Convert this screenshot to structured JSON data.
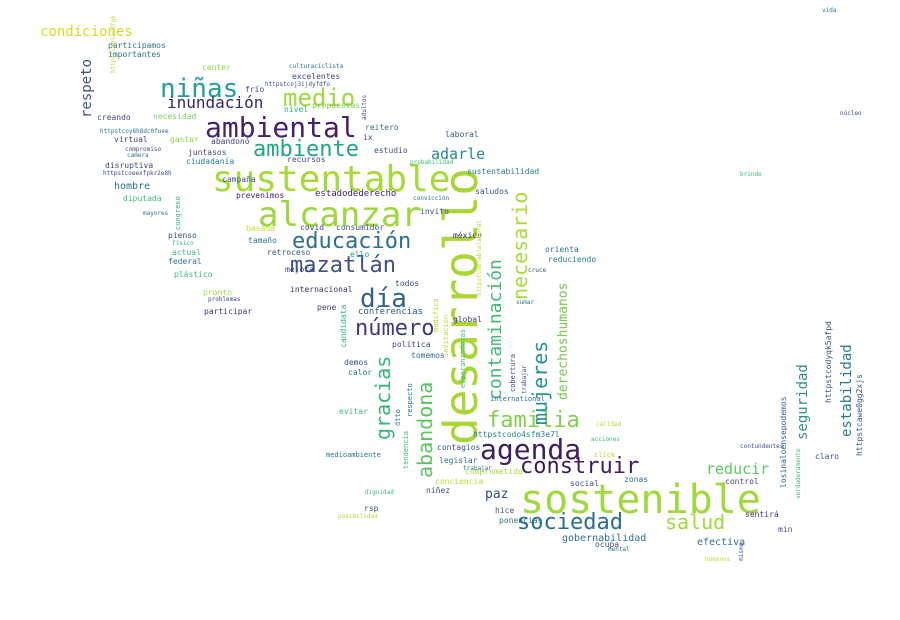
{
  "words": [
    {
      "text": "desarrollo",
      "color": "#a8d632"
    },
    {
      "text": "sostenible",
      "color": "#9fd93a"
    },
    {
      "text": "sustentable",
      "color": "#a4db36"
    },
    {
      "text": "alcanzar",
      "color": "#9cd73b"
    },
    {
      "text": "ambiental",
      "color": "#45206b"
    },
    {
      "text": "agenda",
      "color": "#3b1e63"
    },
    {
      "text": "ambiente",
      "color": "#21a585"
    },
    {
      "text": "educación",
      "color": "#2b6f8e"
    },
    {
      "text": "mazatlán",
      "color": "#3c4f8a"
    },
    {
      "text": "día",
      "color": "#33628d"
    },
    {
      "text": "número",
      "color": "#3d3a83"
    },
    {
      "text": "medio",
      "color": "#9fd93a"
    },
    {
      "text": "niñas",
      "color": "#21a0a0"
    },
    {
      "text": "familia",
      "color": "#7fd04b"
    },
    {
      "text": "construir",
      "color": "#3d1b5c"
    },
    {
      "text": "sociedad",
      "color": "#26718e"
    },
    {
      "text": "salud",
      "color": "#9fda3a"
    },
    {
      "text": "mujeres",
      "color": "#27929a"
    },
    {
      "text": "contaminación",
      "color": "#3fbc73"
    },
    {
      "text": "necesario",
      "color": "#a9dc34"
    },
    {
      "text": "gracias",
      "color": "#34b679"
    },
    {
      "text": "abandona",
      "color": "#5bc462"
    },
    {
      "text": "inundación",
      "color": "#35256c"
    },
    {
      "text": "adarle",
      "color": "#228a8d"
    },
    {
      "text": "reducir",
      "color": "#5ec860"
    },
    {
      "text": "seguridad",
      "color": "#2f8e8c"
    },
    {
      "text": "estabilidad",
      "color": "#2a788e"
    },
    {
      "text": "derechoshumanos",
      "color": "#75c94b"
    },
    {
      "text": "condiciones",
      "color": "#d5dd1e"
    },
    {
      "text": "respeto",
      "color": "#3b5088"
    },
    {
      "text": "paz",
      "color": "#3d4b86"
    },
    {
      "text": "gobernabilidad",
      "color": "#2f6f8d"
    },
    {
      "text": "efectiva",
      "color": "#2b6f8e"
    },
    {
      "text": "hombre",
      "color": "#2c6f8e"
    },
    {
      "text": "estadodederecho",
      "color": "#432268"
    },
    {
      "text": "conferencias",
      "color": "#2a5a8b"
    },
    {
      "text": "internacional",
      "color": "#3f2a6f"
    },
    {
      "text": "participar",
      "color": "#4a2d73"
    },
    {
      "text": "httpstcodo4sfm3e7l",
      "color": "#2d7f8e"
    },
    {
      "text": "httpstcodyqk5afpd",
      "color": "#3b528b"
    },
    {
      "text": "httpstcawe0gg2xjs",
      "color": "#39568c"
    },
    {
      "text": "losinaloensepodemos",
      "color": "#35658e"
    },
    {
      "text": "comprometido",
      "color": "#a7d939"
    },
    {
      "text": "sustentabilidad",
      "color": "#29798e"
    },
    {
      "text": "participamos",
      "color": "#2c738e"
    },
    {
      "text": "importantes",
      "color": "#2e6b8e"
    },
    {
      "text": "excelentes",
      "color": "#3e4989"
    },
    {
      "text": "propuestas",
      "color": "#7ad151"
    },
    {
      "text": "saludos",
      "color": "#3b4f8a"
    },
    {
      "text": "reiterо",
      "color": "#3e6e8e"
    },
    {
      "text": "recursos",
      "color": "#3f4788"
    },
    {
      "text": "estudio",
      "color": "#3e4a89"
    },
    {
      "text": "laboral",
      "color": "#385a8c"
    },
    {
      "text": "invito",
      "color": "#3b528b"
    },
    {
      "text": "méxico",
      "color": "#432d71"
    },
    {
      "text": "orienta",
      "color": "#2d708e"
    },
    {
      "text": "reduciendo",
      "color": "#2a7b8e"
    },
    {
      "text": "prevenimos",
      "color": "#482173"
    },
    {
      "text": "covid",
      "color": "#463480"
    },
    {
      "text": "consumidor",
      "color": "#3c4d8a"
    },
    {
      "text": "retroceso",
      "color": "#3a528b"
    },
    {
      "text": "mejora",
      "color": "#3e4a89"
    },
    {
      "text": "ello",
      "color": "#1fa088"
    },
    {
      "text": "todos",
      "color": "#424086"
    },
    {
      "text": "pene",
      "color": "#453882"
    },
    {
      "text": "global",
      "color": "#463480"
    },
    {
      "text": "política",
      "color": "#3f4788"
    },
    {
      "text": "demos",
      "color": "#3d4e8a"
    },
    {
      "text": "tomemos",
      "color": "#2e6d8e"
    },
    {
      "text": "calor",
      "color": "#2a788e"
    },
    {
      "text": "evitar",
      "color": "#3dbc74"
    },
    {
      "text": "contagios",
      "color": "#3b528b"
    },
    {
      "text": "legislar",
      "color": "#2b758e"
    },
    {
      "text": "conciencia",
      "color": "#b5de2b"
    },
    {
      "text": "niñez",
      "color": "#3e4989"
    },
    {
      "text": "social",
      "color": "#3f4788"
    },
    {
      "text": "zonas",
      "color": "#2f6b8e"
    },
    {
      "text": "control",
      "color": "#424086"
    },
    {
      "text": "hice",
      "color": "#3b528b"
    },
    {
      "text": "ponencias",
      "color": "#2a788e"
    },
    {
      "text": "ocupa",
      "color": "#3e4989"
    },
    {
      "text": "sentirá",
      "color": "#472d7b"
    },
    {
      "text": "min",
      "color": "#3f4788"
    },
    {
      "text": "rsp",
      "color": "#404688"
    },
    {
      "text": "claro",
      "color": "#3b528b"
    },
    {
      "text": "creando",
      "color": "#3e4989"
    },
    {
      "text": "virtual",
      "color": "#3f4788"
    },
    {
      "text": "ciudadanía",
      "color": "#2a788e"
    },
    {
      "text": "disruptiva",
      "color": "#3f4788"
    },
    {
      "text": "diputada",
      "color": "#3dbc74"
    },
    {
      "text": "gastar",
      "color": "#8fd744"
    },
    {
      "text": "abandonó",
      "color": "#433e85"
    },
    {
      "text": "juntasos",
      "color": "#3e4a89"
    },
    {
      "text": "campaña",
      "color": "#3b528b"
    },
    {
      "text": "basada",
      "color": "#c8e020"
    },
    {
      "text": "tamaño",
      "color": "#2c728e"
    },
    {
      "text": "pienso",
      "color": "#3b528b"
    },
    {
      "text": "actual",
      "color": "#3dbc74"
    },
    {
      "text": "federal",
      "color": "#2c728e"
    },
    {
      "text": "plástico",
      "color": "#3dbc74"
    },
    {
      "text": "pronto",
      "color": "#a0da39"
    },
    {
      "text": "necesidad",
      "color": "#7ad151"
    },
    {
      "text": "frío",
      "color": "#3e4a89"
    },
    {
      "text": "center",
      "color": "#8fd744"
    },
    {
      "text": "nivel",
      "color": "#2fb47c"
    },
    {
      "text": "ix",
      "color": "#3b528b"
    },
    {
      "text": "candidata",
      "color": "#2fb47c"
    },
    {
      "text": "modifica",
      "color": "#b5de2b"
    },
    {
      "text": "invitación",
      "color": "#b5de2b"
    },
    {
      "text": "esperanzadoras",
      "color": "#3dbc74"
    },
    {
      "text": "cobertura",
      "color": "#3e4989"
    },
    {
      "text": "dtto",
      "color": "#2c728e"
    },
    {
      "text": "tendencia",
      "color": "#3dbc74"
    },
    {
      "text": "respecto",
      "color": "#2c728e"
    },
    {
      "text": "congreso",
      "color": "#2fb47c"
    },
    {
      "text": "medioambiente",
      "color": "#2c728e"
    },
    {
      "text": "httpstcoj3ijdyfdfo",
      "color": "#3e4989"
    },
    {
      "text": "httpstcoy6h8dc0fuee",
      "color": "#2c728e"
    },
    {
      "text": "httpstcoeexfpkr2e8h",
      "color": "#3e4989"
    },
    {
      "text": "httpstcoblasdfgk",
      "color": "#b5de2b"
    },
    {
      "text": "vida",
      "color": "#2c728e"
    },
    {
      "text": "núcleo",
      "color": "#3e4989"
    },
    {
      "text": "brinde",
      "color": "#3dbc74"
    },
    {
      "text": "culturaciclista",
      "color": "#2c728e"
    },
    {
      "text": "adultos",
      "color": "#3e4989"
    },
    {
      "text": "probabilidad",
      "color": "#3dbc74"
    },
    {
      "text": "convicción",
      "color": "#2c728e"
    },
    {
      "text": "cruce",
      "color": "#3e4989"
    },
    {
      "text": "compromiso",
      "color": "#3e4989"
    },
    {
      "text": "mayores",
      "color": "#2c728e"
    },
    {
      "text": "físico",
      "color": "#3dbc74"
    },
    {
      "text": "problemas",
      "color": "#3e4989"
    },
    {
      "text": "camera",
      "color": "#2c728e"
    },
    {
      "text": "trabajar",
      "color": "#3e4989"
    },
    {
      "text": "calidad",
      "color": "#b5de2b"
    },
    {
      "text": "acciones",
      "color": "#3dbc74"
    },
    {
      "text": "mental",
      "color": "#2c728e"
    },
    {
      "text": "humanos",
      "color": "#b5de2b"
    },
    {
      "text": "contundentes",
      "color": "#3e4989"
    },
    {
      "text": "verdaderamente",
      "color": "#3dbc74"
    },
    {
      "text": "trabajar",
      "color": "#2c728e"
    },
    {
      "text": "mismo",
      "color": "#3e4989"
    },
    {
      "text": "posibilidad",
      "color": "#b5de2b"
    },
    {
      "text": "international",
      "color": "#2c728e"
    },
    {
      "text": "click",
      "color": "#b5de2b"
    },
    {
      "text": "httpstcoblablalaboral",
      "color": "#b5de2b"
    },
    {
      "text": "dignidad",
      "color": "#3dbc74"
    },
    {
      "text": "sumar",
      "color": "#2c728e"
    }
  ]
}
